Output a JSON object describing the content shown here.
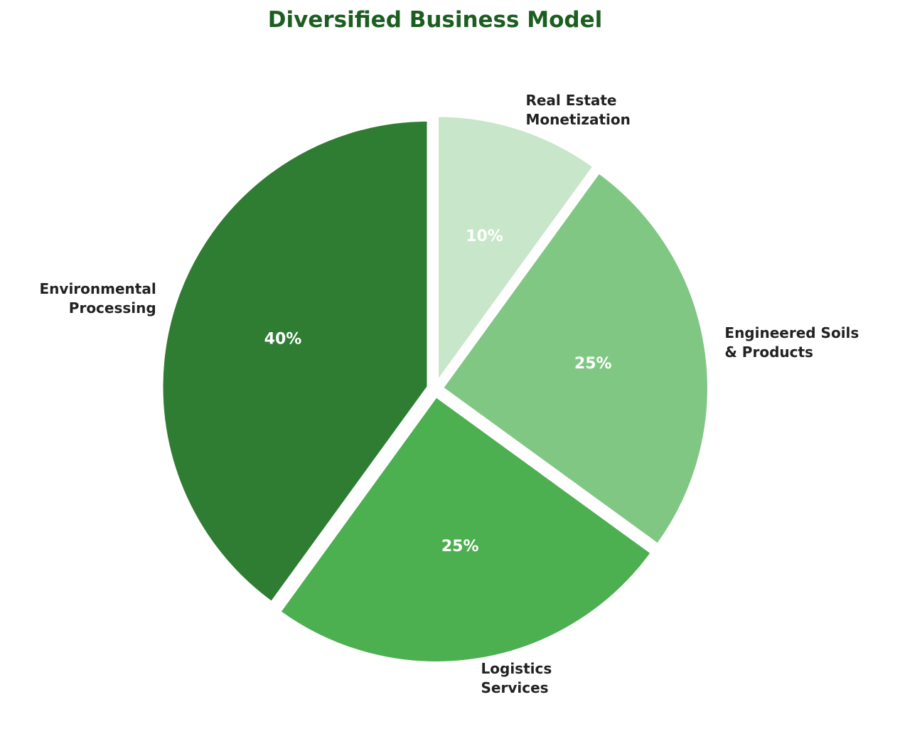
{
  "chart_data": {
    "type": "pie",
    "title": "Diversified Business Model",
    "categories": [
      "Environmental\nProcessing",
      "Logistics\nServices",
      "Engineered Soils\n& Products",
      "Real Estate\nMonetization"
    ],
    "values": [
      40,
      25,
      25,
      10
    ],
    "value_labels": [
      "40%",
      "25%",
      "25%",
      "10%"
    ],
    "colors": [
      "#2e7d32",
      "#4caf50",
      "#81c784",
      "#c8e6c9"
    ]
  }
}
